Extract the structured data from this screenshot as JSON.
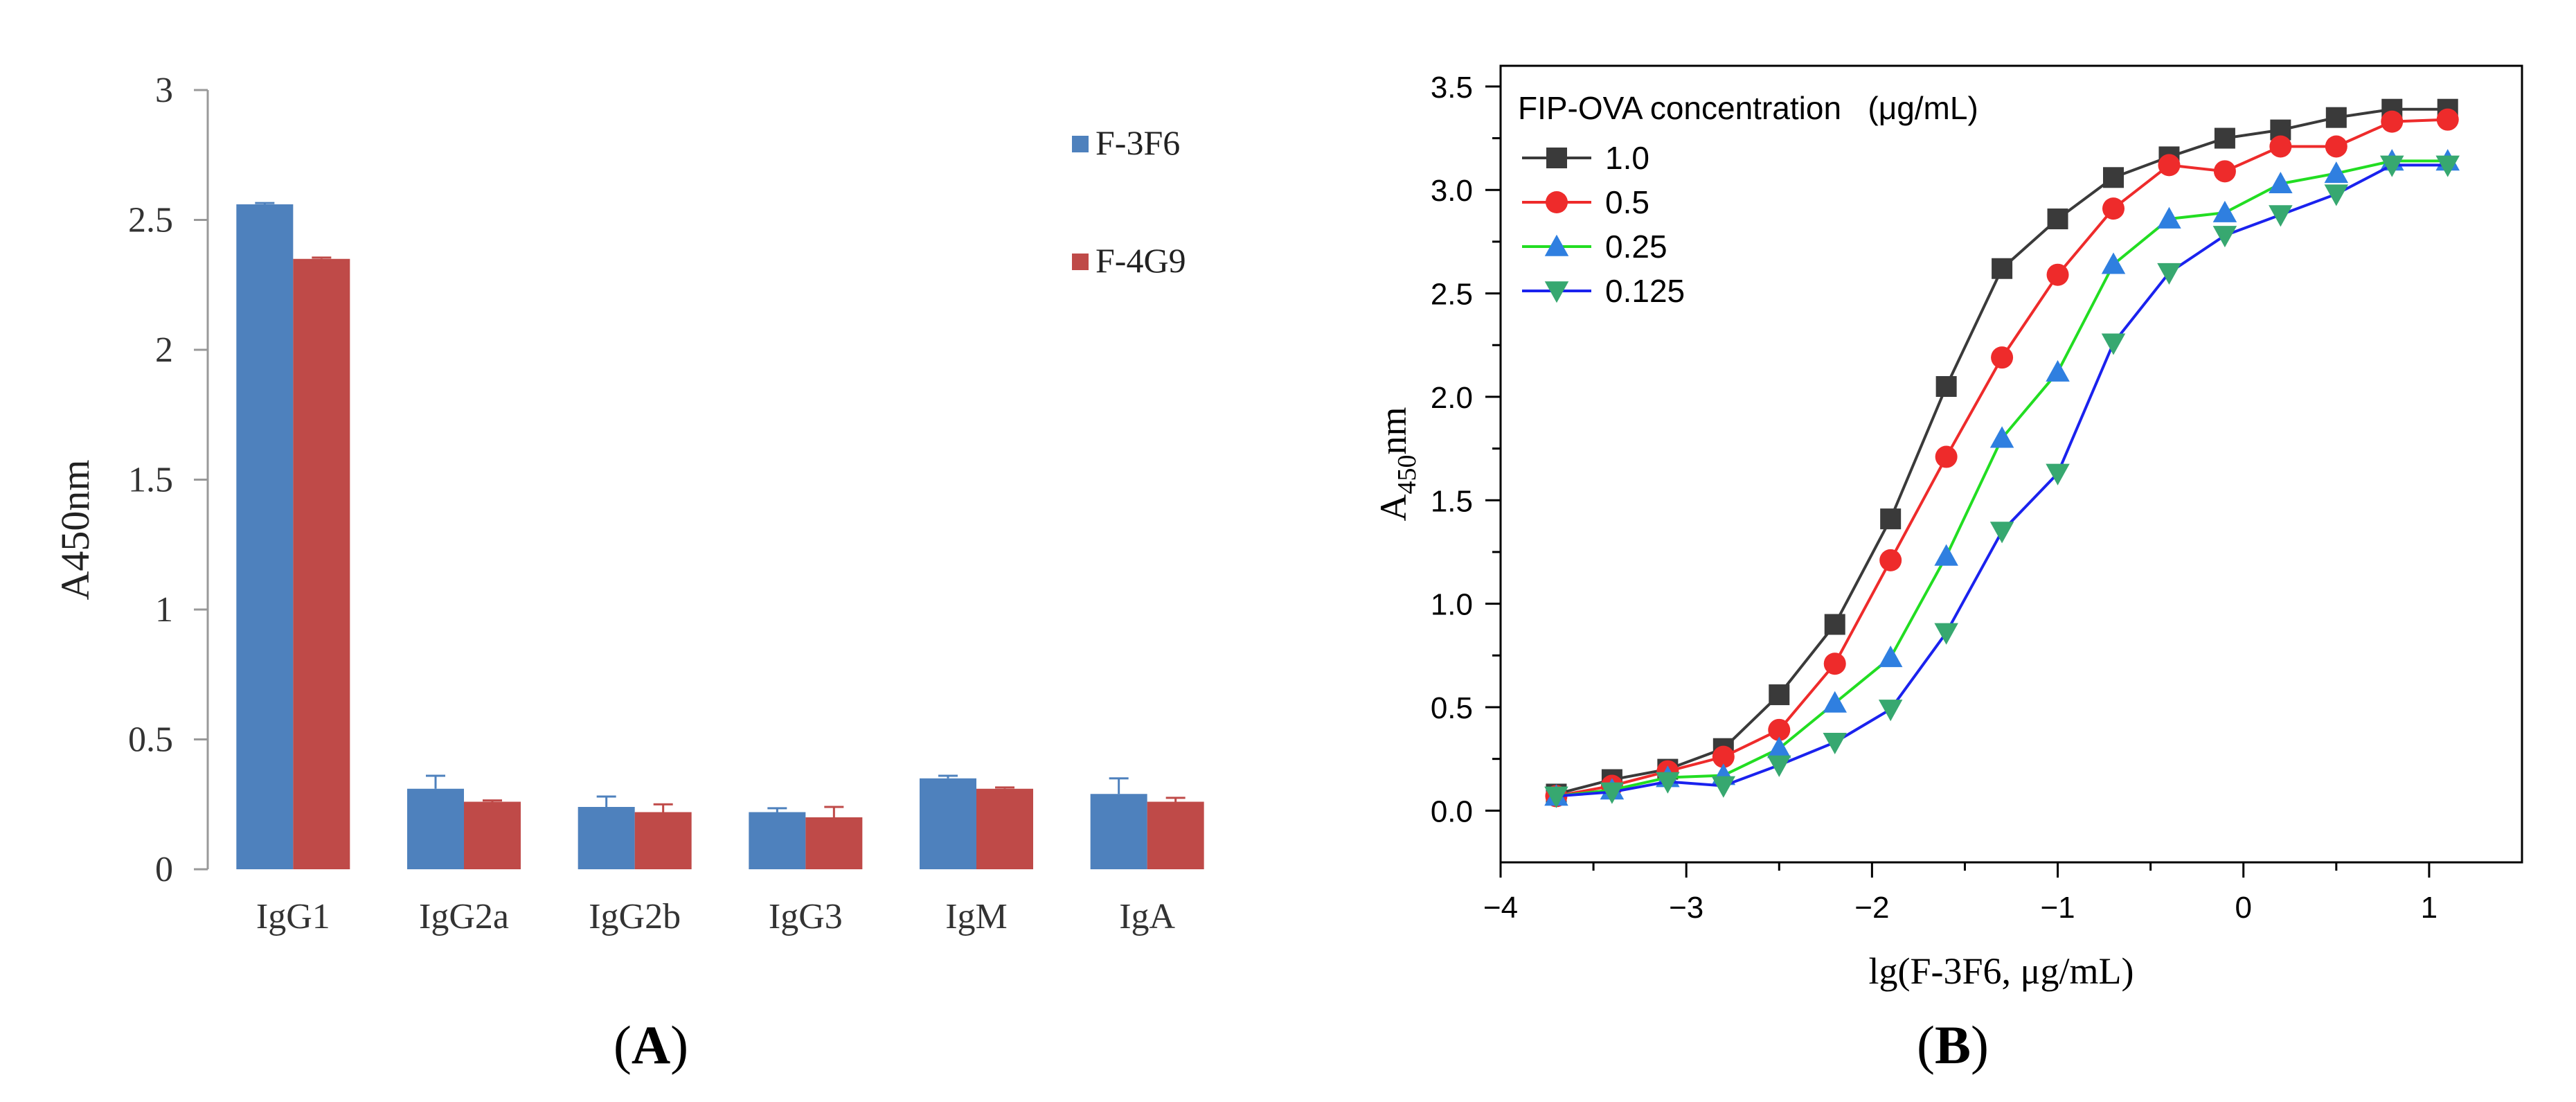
{
  "figure": {
    "panel_a_label": {
      "open": "(",
      "letter": "A",
      "close": ")"
    },
    "panel_b_label": {
      "open": "(",
      "letter": "B",
      "close": ")"
    }
  },
  "colors": {
    "f3f6": "#4e81bd",
    "f4g9": "#bf4a48",
    "conc_1_0": "#3a3a3a",
    "conc_0_5": "#ee2b2b",
    "conc_0_25": "#22dd22",
    "conc_0_125": "#1a22ee",
    "marker_0_25": "#2f7fe0",
    "marker_0_125": "#37a870"
  },
  "chart_data": [
    {
      "type": "bar",
      "title": "",
      "xlabel": "",
      "ylabel": "A450nm",
      "ylim": [
        0,
        3
      ],
      "yticks": [
        "0",
        "0.5",
        "1",
        "1.5",
        "2",
        "2.5",
        "3"
      ],
      "categories": [
        "IgG1",
        "IgG2a",
        "IgG2b",
        "IgG3",
        "IgM",
        "IgA"
      ],
      "series": [
        {
          "name": "F-3F6",
          "values": [
            2.56,
            0.31,
            0.24,
            0.22,
            0.35,
            0.29
          ],
          "errors": [
            0.005,
            0.05,
            0.04,
            0.015,
            0.01,
            0.06
          ]
        },
        {
          "name": "F-4G9",
          "values": [
            2.35,
            0.26,
            0.22,
            0.2,
            0.31,
            0.26
          ],
          "errors": [
            0.005,
            0.005,
            0.03,
            0.04,
            0.005,
            0.015
          ]
        }
      ],
      "legend_position": "top-right"
    },
    {
      "type": "line",
      "title": "",
      "xlabel": "lg(F-3F6, μg/mL)",
      "ylabel_main": "A",
      "ylabel_sub": "450",
      "ylabel_tail": "nm",
      "xlim": [
        -4,
        1.5
      ],
      "ylim": [
        -0.25,
        3.6
      ],
      "xticks": [
        "−4",
        "−3",
        "−2",
        "−1",
        "0",
        "1"
      ],
      "yticks": [
        "0.0",
        "0.5",
        "1.0",
        "1.5",
        "2.0",
        "2.5",
        "3.0",
        "3.5"
      ],
      "legend_title": "FIP-OVA concentration   (μg/mL)",
      "legend_position": "top-left",
      "x": [
        -3.7,
        -3.4,
        -3.1,
        -2.8,
        -2.5,
        -2.2,
        -1.9,
        -1.6,
        -1.3,
        -1.0,
        -0.7,
        -0.4,
        -0.1,
        0.2,
        0.5,
        0.8,
        1.1
      ],
      "series": [
        {
          "name": "1.0",
          "marker": "square",
          "values": [
            0.08,
            0.15,
            0.2,
            0.3,
            0.56,
            0.9,
            1.41,
            2.05,
            2.62,
            2.86,
            3.06,
            3.16,
            3.25,
            3.29,
            3.35,
            3.39,
            3.39
          ]
        },
        {
          "name": "0.5",
          "marker": "circle",
          "values": [
            0.07,
            0.12,
            0.19,
            0.26,
            0.39,
            0.71,
            1.21,
            1.71,
            2.19,
            2.59,
            2.91,
            3.12,
            3.09,
            3.21,
            3.21,
            3.33,
            3.34
          ]
        },
        {
          "name": "0.25",
          "marker": "triangle-up",
          "values": [
            0.07,
            0.1,
            0.16,
            0.17,
            0.3,
            0.52,
            0.74,
            1.23,
            1.8,
            2.12,
            2.64,
            2.86,
            2.89,
            3.03,
            3.08,
            3.14,
            3.14
          ]
        },
        {
          "name": "0.125",
          "marker": "triangle-down",
          "values": [
            0.07,
            0.09,
            0.14,
            0.12,
            0.22,
            0.33,
            0.49,
            0.86,
            1.35,
            1.63,
            2.26,
            2.6,
            2.78,
            2.88,
            2.98,
            3.12,
            3.12
          ]
        }
      ]
    }
  ]
}
